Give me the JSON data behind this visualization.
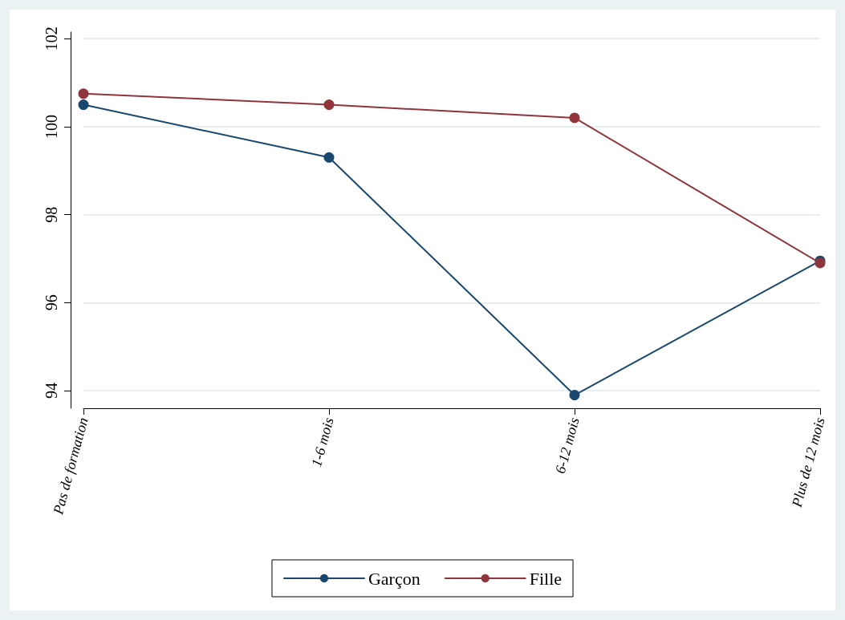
{
  "chart_data": {
    "type": "line",
    "categories": [
      "Pas de formation",
      "1-6 mois",
      "6-12 mois",
      "Plus de 12 mois"
    ],
    "series": [
      {
        "name": "Garçon",
        "color": "#1a476f",
        "values": [
          100.5,
          99.3,
          93.9,
          96.95
        ]
      },
      {
        "name": "Fille",
        "color": "#90353b",
        "values": [
          100.75,
          100.5,
          100.2,
          96.9
        ]
      }
    ],
    "ylim": [
      93.6,
      102.15
    ],
    "yticks": [
      94,
      96,
      98,
      100,
      102
    ],
    "grid": "y",
    "legend": "bottom",
    "marker": "circle",
    "line_style": "solid"
  }
}
